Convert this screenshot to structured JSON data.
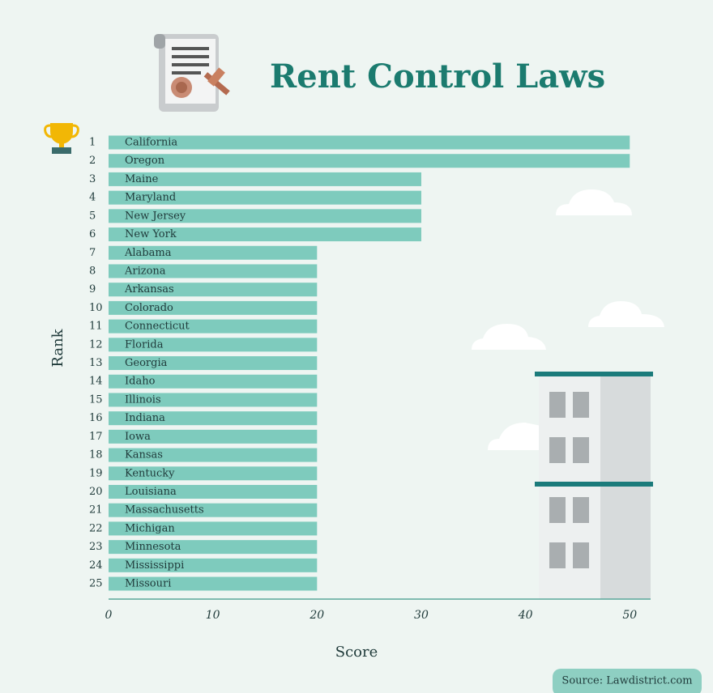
{
  "chart_data": {
    "type": "bar",
    "orientation": "horizontal",
    "title": "Rent Control Laws",
    "x_label": "Score",
    "y_label": "Rank",
    "source": "Source: Lawdistrict.com",
    "ranks": [
      1,
      2,
      3,
      4,
      5,
      6,
      7,
      8,
      9,
      10,
      11,
      12,
      13,
      14,
      15,
      16,
      17,
      18,
      19,
      20,
      21,
      22,
      23,
      24,
      25
    ],
    "categories": [
      "California",
      "Oregon",
      "Maine",
      "Maryland",
      "New Jersey",
      "New York",
      "Alabama",
      "Arizona",
      "Arkansas",
      "Colorado",
      "Connecticut",
      "Florida",
      "Georgia",
      "Idaho",
      "Illinois",
      "Indiana",
      "Iowa",
      "Kansas",
      "Kentucky",
      "Louisiana",
      "Massachusetts",
      "Michigan",
      "Minnesota",
      "Mississippi",
      "Missouri"
    ],
    "values": [
      50,
      50,
      30,
      30,
      30,
      30,
      20,
      20,
      20,
      20,
      20,
      20,
      20,
      20,
      20,
      20,
      20,
      20,
      20,
      20,
      20,
      20,
      20,
      20,
      20
    ],
    "color": "#7ecbbd",
    "xlim": [
      0,
      52
    ],
    "xticks": [
      0,
      10,
      20,
      30,
      40,
      50
    ]
  }
}
